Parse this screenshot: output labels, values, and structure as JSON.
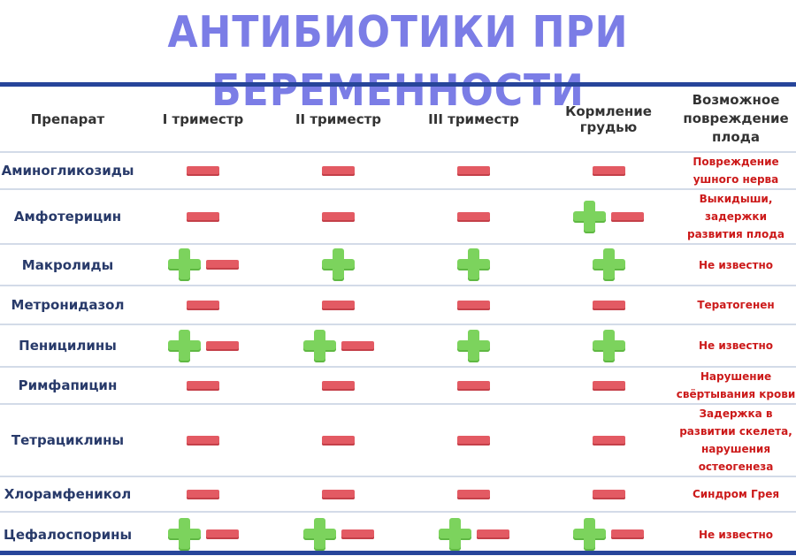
{
  "title": "АНТИБИОТИКИ ПРИ БЕРЕМЕННОСТИ",
  "headers": {
    "drug": "Препарат",
    "t1": "I триместр",
    "t2": "II триместр",
    "t3": "III триместр",
    "bf": "Кормление грудью",
    "effect_lines": [
      "Возможное",
      "повреждение",
      "плода"
    ]
  },
  "legend_colors": {
    "allowed": "#7cd35d",
    "forbidden": "#e35a63",
    "effect_text": "#cc1a1a",
    "drug_text": "#283a6a",
    "title": "#7b7de6"
  },
  "rows": [
    {
      "drug": "Аминогликозиды",
      "t1": "-",
      "t2": "-",
      "t3": "-",
      "bf": "-",
      "effect_lines": [
        "Повреждение",
        "ушного нерва"
      ]
    },
    {
      "drug": "Амфотерицин",
      "t1": "-",
      "t2": "-",
      "t3": "-",
      "bf": "+-",
      "effect_lines": [
        "Выкидыши,",
        "задержки",
        "развития плода"
      ]
    },
    {
      "drug": "Макролиды",
      "t1": "+-",
      "t2": "+",
      "t3": "+",
      "bf": "+",
      "effect_lines": [
        "Не известно"
      ]
    },
    {
      "drug": "Метронидазол",
      "t1": "-",
      "t2": "-",
      "t3": "-",
      "bf": "-",
      "effect_lines": [
        "Тератогенен"
      ]
    },
    {
      "drug": "Пеницилины",
      "t1": "+-",
      "t2": "+-",
      "t3": "+",
      "bf": "+",
      "effect_lines": [
        "Не известно"
      ]
    },
    {
      "drug": "Римфапицин",
      "t1": "-",
      "t2": "-",
      "t3": "-",
      "bf": "-",
      "effect_lines": [
        "Нарушение",
        "свёртывания крови"
      ]
    },
    {
      "drug": "Тетрациклины",
      "t1": "-",
      "t2": "-",
      "t3": "-",
      "bf": "-",
      "effect_lines": [
        "Задержка в",
        "развитии скелета,",
        "нарушения",
        "остеогенеза"
      ]
    },
    {
      "drug": "Хлорамфеникол",
      "t1": "-",
      "t2": "-",
      "t3": "-",
      "bf": "-",
      "effect_lines": [
        "Синдром Грея"
      ]
    },
    {
      "drug": "Цефалоспорины",
      "t1": "+-",
      "t2": "+-",
      "t3": "+-",
      "bf": "+-",
      "effect_lines": [
        "Не известно"
      ]
    }
  ]
}
